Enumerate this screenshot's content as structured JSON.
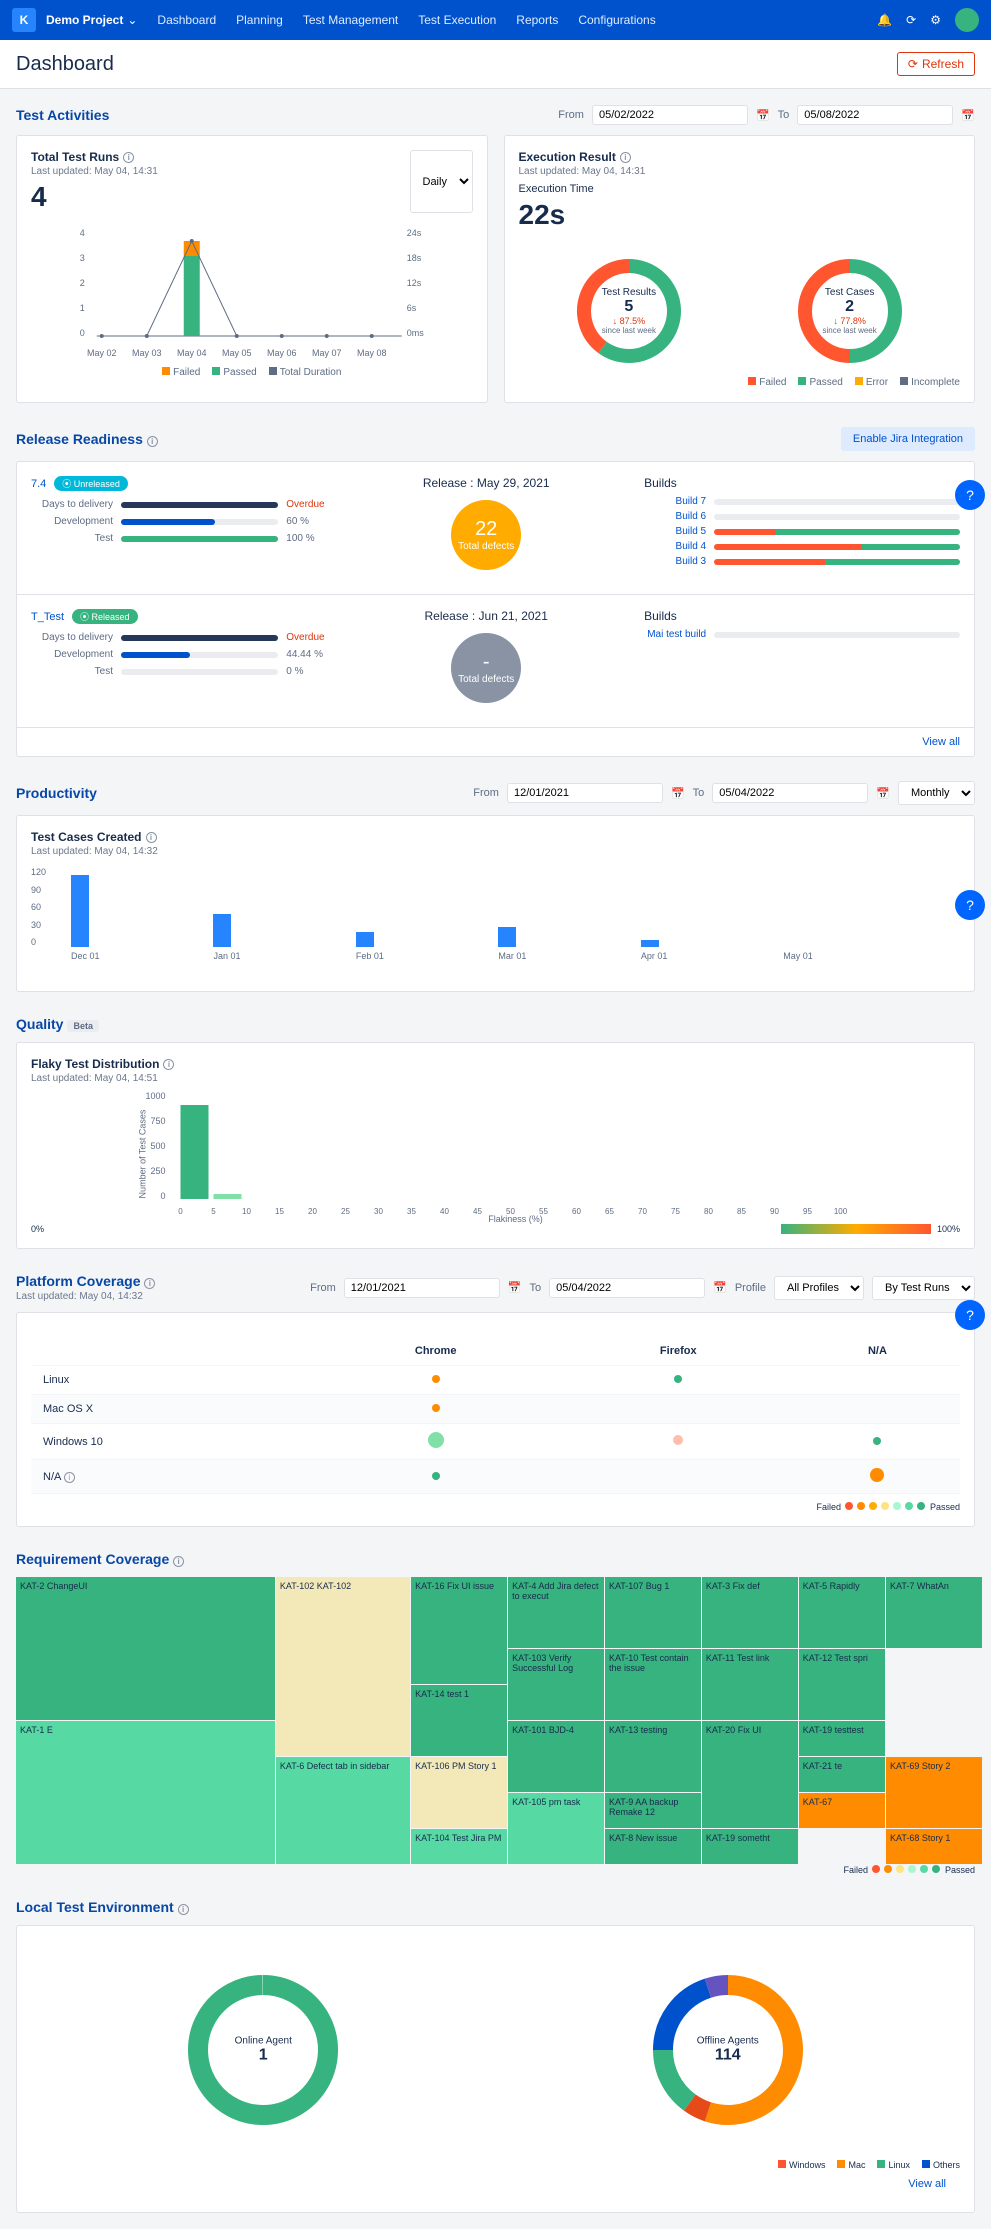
{
  "topbar": {
    "project": "Demo Project",
    "nav": [
      "Dashboard",
      "Planning",
      "Test Management",
      "Test Execution",
      "Reports",
      "Configurations"
    ]
  },
  "header": {
    "title": "Dashboard",
    "refresh": "Refresh"
  },
  "testActivities": {
    "title": "Test Activities",
    "from": "From",
    "to": "To",
    "date_from": "05/02/2022",
    "date_to": "05/08/2022",
    "totalRuns": {
      "title": "Total Test Runs",
      "updated": "Last updated: May 04, 14:31",
      "value": "4",
      "period": "Daily",
      "x": [
        "May 02",
        "May 03",
        "May 04",
        "May 05",
        "May 06",
        "May 07",
        "May 08"
      ],
      "y_left": [
        "4",
        "3",
        "2",
        "1",
        "0"
      ],
      "y_right": [
        "24s",
        "18s",
        "12s",
        "6s",
        "0ms"
      ],
      "bar_pass": 3.2,
      "bar_fail": 0.6,
      "legend": [
        "Failed",
        "Passed",
        "Total Duration"
      ],
      "colors": {
        "failed": "#ff8b00",
        "passed": "#36b37e",
        "duration": "#5e6c84"
      }
    },
    "execResult": {
      "title": "Execution Result",
      "updated": "Last updated: May 04, 14:31",
      "time_label": "Execution Time",
      "time": "22s",
      "results": {
        "label": "Test Results",
        "n": "5",
        "pct": "↓ 87.5%",
        "since": "since last week",
        "passed": 60,
        "failed": 40
      },
      "cases": {
        "label": "Test Cases",
        "n": "2",
        "pct": "↓ 77.8%",
        "since": "since last week",
        "passed": 50,
        "failed": 50
      },
      "legend": [
        "Failed",
        "Passed",
        "Error",
        "Incomplete"
      ],
      "colors": {
        "failed": "#ff5630",
        "passed": "#36b37e",
        "error": "#ffab00",
        "incomplete": "#5e6c84"
      }
    }
  },
  "release": {
    "title": "Release Readiness",
    "jira_btn": "Enable Jira Integration",
    "rows": [
      {
        "id": "7.4",
        "badge": "Unreleased",
        "badge_color": "#00b8d9",
        "days_lbl": "Days to delivery",
        "days_val": "Overdue",
        "days_pct": 100,
        "days_color": "#253858",
        "dev_lbl": "Development",
        "dev_val": "60 %",
        "dev_pct": 60,
        "dev_color": "#0052cc",
        "test_lbl": "Test",
        "test_val": "100 %",
        "test_pct": 100,
        "test_color": "#36b37e",
        "release": "Release : May 29, 2021",
        "defects": "22",
        "defects_lbl": "Total defects",
        "circle_color": "#ffab00",
        "builds_lbl": "Builds",
        "builds": [
          {
            "name": "Build 7",
            "segs": []
          },
          {
            "name": "Build 6",
            "segs": []
          },
          {
            "name": "Build 5",
            "segs": [
              [
                "#ff5630",
                25
              ],
              [
                "#36b37e",
                75
              ]
            ]
          },
          {
            "name": "Build 4",
            "segs": [
              [
                "#ff5630",
                60
              ],
              [
                "#36b37e",
                40
              ]
            ]
          },
          {
            "name": "Build 3",
            "segs": [
              [
                "#ff5630",
                45
              ],
              [
                "#36b37e",
                55
              ]
            ]
          }
        ]
      },
      {
        "id": "T_Test",
        "badge": "Released",
        "badge_color": "#36b37e",
        "days_lbl": "Days to delivery",
        "days_val": "Overdue",
        "days_pct": 100,
        "days_color": "#253858",
        "dev_lbl": "Development",
        "dev_val": "44.44 %",
        "dev_pct": 44,
        "dev_color": "#0052cc",
        "test_lbl": "Test",
        "test_val": "0 %",
        "test_pct": 0,
        "test_color": "#36b37e",
        "release": "Release : Jun 21, 2021",
        "defects": "-",
        "defects_lbl": "Total defects",
        "circle_color": "#8993a4",
        "builds_lbl": "Builds",
        "builds": [
          {
            "name": "Mai test build",
            "segs": []
          }
        ]
      }
    ],
    "viewall": "View all"
  },
  "productivity": {
    "title": "Productivity",
    "from": "From",
    "to": "To",
    "date_from": "12/01/2021",
    "date_to": "05/04/2022",
    "period": "Monthly",
    "chart": {
      "title": "Test Cases Created",
      "updated": "Last updated: May 04, 14:32",
      "y": [
        "120",
        "90",
        "60",
        "30",
        "0"
      ],
      "data": [
        {
          "x": "Dec 01",
          "v": 108
        },
        {
          "x": "Jan 01",
          "v": 50
        },
        {
          "x": "Feb 01",
          "v": 22
        },
        {
          "x": "Mar 01",
          "v": 30
        },
        {
          "x": "Apr 01",
          "v": 10
        },
        {
          "x": "May 01",
          "v": 0
        }
      ],
      "color": "#2684ff",
      "max": 120
    }
  },
  "quality": {
    "title": "Quality",
    "beta": "Beta",
    "chart": {
      "title": "Flaky Test Distribution",
      "updated": "Last updated: May 04, 14:51",
      "ylabel": "Number of Test Cases",
      "xlabel": "Flakiness (%)",
      "y": [
        "1000",
        "750",
        "500",
        "250",
        "0"
      ],
      "x": [
        "0",
        "5",
        "10",
        "15",
        "20",
        "25",
        "30",
        "35",
        "40",
        "45",
        "50",
        "55",
        "60",
        "65",
        "70",
        "75",
        "80",
        "85",
        "90",
        "95",
        "100"
      ],
      "data": [
        {
          "x": 0,
          "v": 940,
          "c": "#36b37e"
        },
        {
          "x": 1,
          "v": 50,
          "c": "#81e0a8"
        }
      ],
      "grad": [
        "0%",
        "100%"
      ]
    }
  },
  "platform": {
    "title": "Platform Coverage",
    "updated": "Last updated: May 04, 14:32",
    "from": "From",
    "to": "To",
    "date_from": "12/01/2021",
    "date_to": "05/04/2022",
    "profile_lbl": "Profile",
    "profile": "All Profiles",
    "by": "By Test Runs",
    "cols": [
      "Chrome",
      "Firefox",
      "N/A"
    ],
    "rows": [
      {
        "os": "Linux",
        "cells": [
          {
            "c": "#ff8b00",
            "s": 8
          },
          {
            "c": "#36b37e",
            "s": 8
          },
          null
        ]
      },
      {
        "os": "Mac OS X",
        "cells": [
          {
            "c": "#ff8b00",
            "s": 8
          },
          null,
          null
        ]
      },
      {
        "os": "Windows 10",
        "cells": [
          {
            "c": "#81e0a8",
            "s": 16
          },
          {
            "c": "#ffbdad",
            "s": 10
          },
          {
            "c": "#36b37e",
            "s": 8
          }
        ]
      },
      {
        "os": "N/A",
        "cells": [
          {
            "c": "#36b37e",
            "s": 8
          },
          null,
          {
            "c": "#ff8b00",
            "s": 14
          }
        ]
      }
    ],
    "legend_lbl": "Failed",
    "legend_dots": [
      "#ff5630",
      "#ff8b00",
      "#ffab00",
      "#ffe380",
      "#abf5d1",
      "#57d9a3",
      "#36b37e"
    ],
    "legend_end": "Passed"
  },
  "reqcov": {
    "title": "Requirement Coverage",
    "tiles": [
      {
        "t": "KAT-2 ChangeUI",
        "c": "#36b37e",
        "g": "1/1/5/2"
      },
      {
        "t": "KAT-1 E",
        "c": "#57d9a3",
        "g": "5/1/9/2"
      },
      {
        "t": "KAT-102 KAT-102",
        "c": "#f3e8b8",
        "g": "1/2/6/3"
      },
      {
        "t": "KAT-6 Defect tab in sidebar",
        "c": "#57d9a3",
        "g": "6/2/9/3"
      },
      {
        "t": "KAT-16 Fix UI issue",
        "c": "#36b37e",
        "g": "1/3/4/4"
      },
      {
        "t": "KAT-14 test 1",
        "c": "#36b37e",
        "g": "4/3/6/4"
      },
      {
        "t": "KAT-106 PM Story 1",
        "c": "#f3e8b8",
        "g": "6/3/8/4"
      },
      {
        "t": "KAT-104 Test Jira PM",
        "c": "#57d9a3",
        "g": "8/3/9/4"
      },
      {
        "t": "KAT-4 Add Jira defect to execut",
        "c": "#36b37e",
        "g": "1/4/3/5"
      },
      {
        "t": "KAT-103 Verify Successful Log",
        "c": "#36b37e",
        "g": "3/4/5/5"
      },
      {
        "t": "KAT-101 BJD-4",
        "c": "#36b37e",
        "g": "5/4/7/5"
      },
      {
        "t": "KAT-105 pm task",
        "c": "#57d9a3",
        "g": "7/4/9/5"
      },
      {
        "t": "KAT-107 Bug 1",
        "c": "#36b37e",
        "g": "1/5/3/6"
      },
      {
        "t": "KAT-10 Test contain the issue",
        "c": "#36b37e",
        "g": "3/5/5/6"
      },
      {
        "t": "KAT-13 testing",
        "c": "#36b37e",
        "g": "5/5/7/6"
      },
      {
        "t": "KAT-9 AA backup Remake 12",
        "c": "#36b37e",
        "g": "7/5/8/6"
      },
      {
        "t": "KAT-8 New issue",
        "c": "#36b37e",
        "g": "8/5/9/6"
      },
      {
        "t": "KAT-3 Fix def",
        "c": "#36b37e",
        "g": "1/6/3/7"
      },
      {
        "t": "KAT-11 Test link",
        "c": "#36b37e",
        "g": "3/6/5/7"
      },
      {
        "t": "KAT-20 Fix UI",
        "c": "#36b37e",
        "g": "5/6/8/7"
      },
      {
        "t": "KAT-19 sometht",
        "c": "#36b37e",
        "g": "8/6/9/7"
      },
      {
        "t": "KAT-5 Rapidly",
        "c": "#36b37e",
        "g": "1/7/3/8"
      },
      {
        "t": "KAT-12 Test spri",
        "c": "#36b37e",
        "g": "3/7/5/8"
      },
      {
        "t": "KAT-19 testtest",
        "c": "#36b37e",
        "g": "5/7/6/8"
      },
      {
        "t": "KAT-21 te",
        "c": "#36b37e",
        "g": "6/7/7/8"
      },
      {
        "t": "KAT-67",
        "c": "#ff8b00",
        "g": "7/7/8/8"
      },
      {
        "t": "KAT-7 WhatAn",
        "c": "#36b37e",
        "g": "1/8/3/9"
      },
      {
        "t": "KAT-69 Story 2",
        "c": "#ff8b00",
        "g": "6/8/8/9"
      },
      {
        "t": "KAT-68 Story 1",
        "c": "#ff8b00",
        "g": "8/8/9/9"
      }
    ],
    "legend": [
      "Failed",
      "Passed"
    ],
    "legend_dots": [
      "#ff5630",
      "#ff8b00",
      "#ffe380",
      "#abf5d1",
      "#57d9a3",
      "#36b37e"
    ]
  },
  "lte": {
    "title": "Local Test Environment",
    "online": {
      "label": "Online Agent",
      "n": "1",
      "color": "#36b37e"
    },
    "offline": {
      "label": "Offline Agents",
      "n": "114",
      "segs": [
        [
          "#ff8b00",
          55
        ],
        [
          "#e64a19",
          5
        ],
        [
          "#36b37e",
          15
        ],
        [
          "#0052cc",
          20
        ],
        [
          "#6554c0",
          5
        ]
      ]
    },
    "legend": [
      "Windows",
      "Mac",
      "Linux",
      "Others"
    ],
    "legend_colors": [
      "#ff5630",
      "#ff8b00",
      "#36b37e",
      "#0052cc"
    ],
    "viewall": "View all"
  }
}
